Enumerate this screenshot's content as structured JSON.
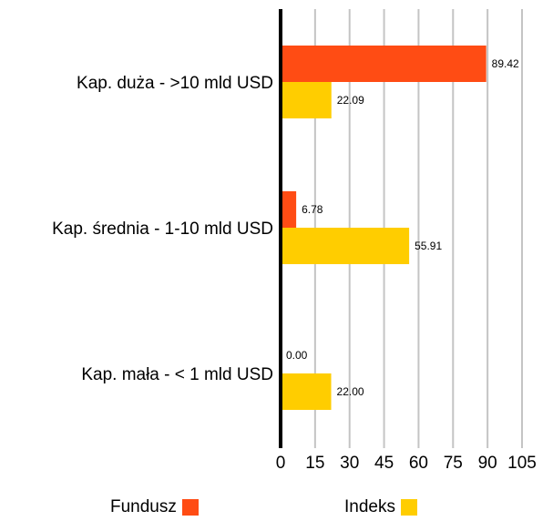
{
  "chart_data": {
    "type": "bar",
    "orientation": "horizontal",
    "categories": [
      "Kap. duża - >10 mld USD",
      "Kap. średnia - 1-10 mld USD",
      "Kap. mała - < 1 mld USD"
    ],
    "series": [
      {
        "name": "Fundusz",
        "values": [
          89.42,
          6.78,
          0.0
        ],
        "labels": [
          "89.42",
          "6.78",
          "0.00"
        ],
        "color": "#ff4c14"
      },
      {
        "name": "Indeks",
        "values": [
          22.09,
          55.91,
          22.0
        ],
        "labels": [
          "22.09",
          "55.91",
          "22.00"
        ],
        "color": "#ffcd00"
      }
    ],
    "xlim": [
      0,
      105
    ],
    "xticks": [
      "0",
      "15",
      "30",
      "45",
      "60",
      "75",
      "90",
      "105"
    ],
    "grid": true,
    "legend_position": "bottom"
  },
  "legend": {
    "items": [
      {
        "label": "Fundusz",
        "color": "#ff4c14"
      },
      {
        "label": "Indeks",
        "color": "#ffcd00"
      }
    ]
  }
}
